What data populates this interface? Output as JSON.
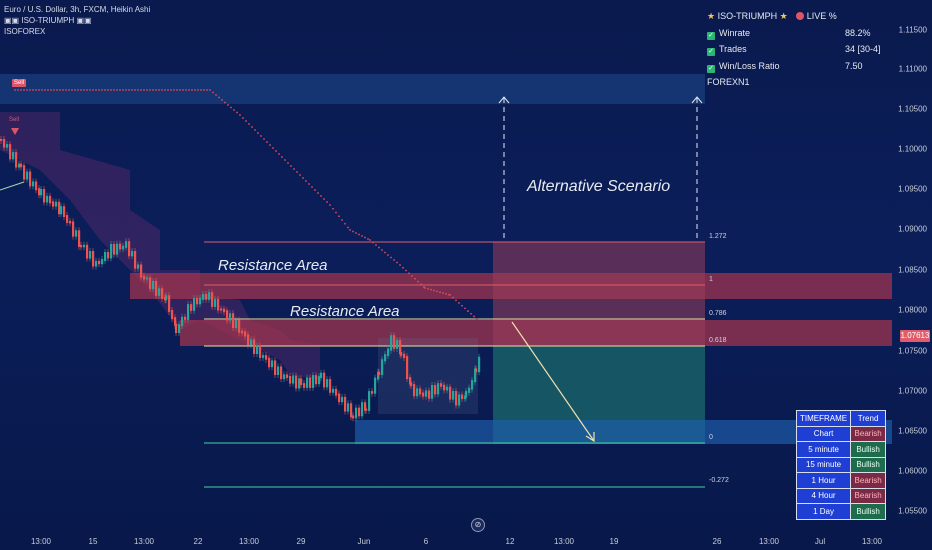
{
  "header": {
    "title_line": "Euro / U.S. Dollar, 3h, FXCM, Heikin Ashi",
    "indicator_line": "ISO-TRIUMPH",
    "author_line": "ISOFOREX"
  },
  "stats_panel": {
    "title": "ISO-TRIUMPH",
    "live_label": "LIVE %",
    "rows": [
      {
        "label": "Winrate",
        "value": "88.2%"
      },
      {
        "label": "Trades",
        "value": "34 [30-4]"
      },
      {
        "label": "Win/Loss Ratio",
        "value": "7.50"
      }
    ],
    "footer": "FOREXN1"
  },
  "signals": {
    "sell_tag": "Sell",
    "sell_small": "Sell"
  },
  "annotations": {
    "alternative": "Alternative Scenario",
    "resistance_upper": "Resistance Area",
    "resistance_lower": "Resistance Area"
  },
  "fib_levels": {
    "l1272": "1.272",
    "l1": "1",
    "l0786": "0.786",
    "l0618": "0.618",
    "l0": "0",
    "lneg": "-0.272"
  },
  "price_axis": [
    "1.11500",
    "1.11000",
    "1.10500",
    "1.10000",
    "1.09500",
    "1.09000",
    "1.08500",
    "1.08000",
    "1.07500",
    "1.07000",
    "1.06500",
    "1.06000",
    "1.05500"
  ],
  "current_price": "1.07613",
  "time_axis": [
    "13:00",
    "15",
    "13:00",
    "22",
    "13:00",
    "29",
    "Jun",
    "6",
    "12",
    "13:00",
    "19",
    "26",
    "13:00",
    "Jul",
    "13:00"
  ],
  "timeframe_table": {
    "headers": [
      "TIMEFRAME",
      "Trend"
    ],
    "rows": [
      {
        "tf": "Chart",
        "trend": "Bearish"
      },
      {
        "tf": "5 minute",
        "trend": "Bullish"
      },
      {
        "tf": "15 minute",
        "trend": "Bullish"
      },
      {
        "tf": "1 Hour",
        "trend": "Bearish"
      },
      {
        "tf": "4 Hour",
        "trend": "Bearish"
      },
      {
        "tf": "1 Day",
        "trend": "Bullish"
      }
    ]
  },
  "colors": {
    "bull": "#26a69a",
    "bear": "#ef5350",
    "accent": "#e0546a"
  }
}
